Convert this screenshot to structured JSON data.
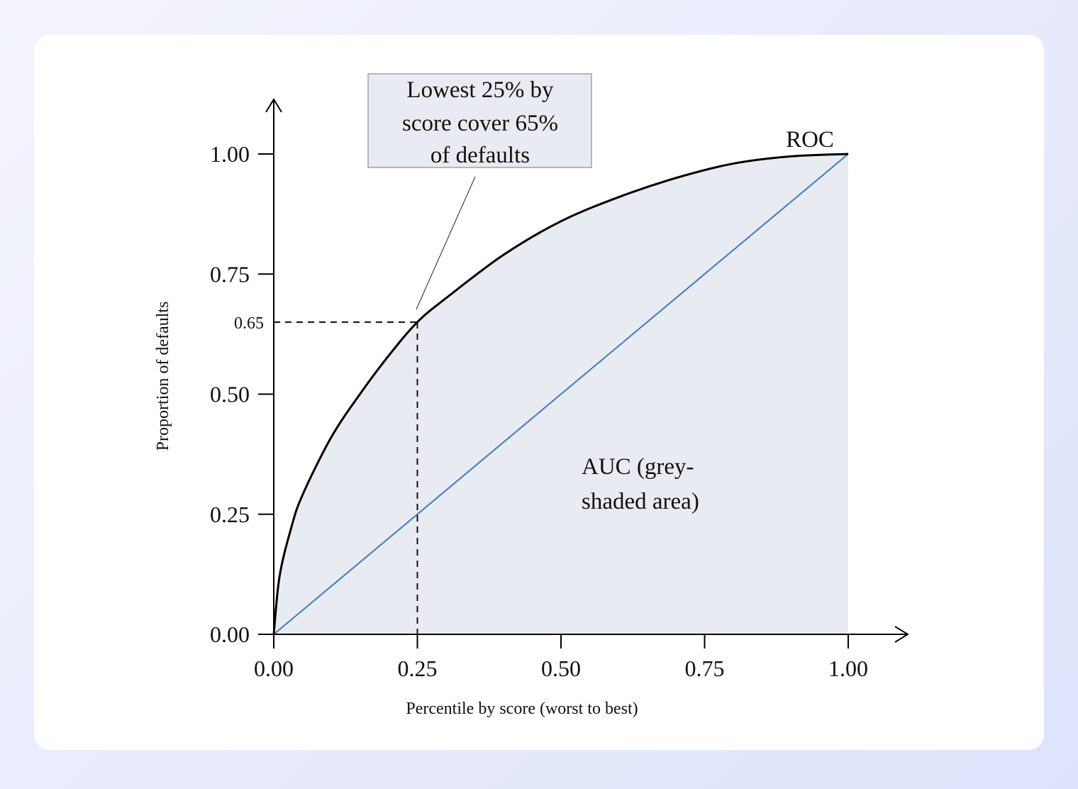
{
  "chart_data": {
    "type": "line",
    "xlabel": "Percentile by score (worst to best)",
    "ylabel": "Proportion of defaults",
    "xlim": [
      0,
      1
    ],
    "ylim": [
      0,
      1
    ],
    "x_ticks": [
      "0.00",
      "0.25",
      "0.50",
      "0.75",
      "1.00"
    ],
    "y_ticks": [
      "0.00",
      "0.25",
      "0.50",
      "0.75",
      "1.00"
    ],
    "marked_point": {
      "x": 0.25,
      "y": 0.65,
      "y_label": "0.65"
    },
    "series": [
      {
        "name": "ROC",
        "color": "#000000",
        "x": [
          0,
          0.01,
          0.03,
          0.05,
          0.1,
          0.15,
          0.2,
          0.25,
          0.3,
          0.4,
          0.5,
          0.6,
          0.7,
          0.8,
          0.9,
          1.0
        ],
        "y": [
          0,
          0.12,
          0.22,
          0.29,
          0.41,
          0.5,
          0.58,
          0.65,
          0.7,
          0.79,
          0.86,
          0.91,
          0.95,
          0.98,
          0.995,
          1.0
        ]
      },
      {
        "name": "",
        "color": "#3a7bc8",
        "x": [
          0,
          1
        ],
        "y": [
          0,
          1
        ]
      }
    ],
    "shaded_area_label": "AUC (grey-shaded area)",
    "shade_color": "#e9ebf2",
    "grid": false,
    "annotations": {
      "roc_label": "ROC",
      "auc_label_line1": "AUC (grey-",
      "auc_label_line2": "shaded area)",
      "callout_line1": "Lowest 25% by",
      "callout_line2": "score cover 65%",
      "callout_line3": "of defaults"
    }
  }
}
